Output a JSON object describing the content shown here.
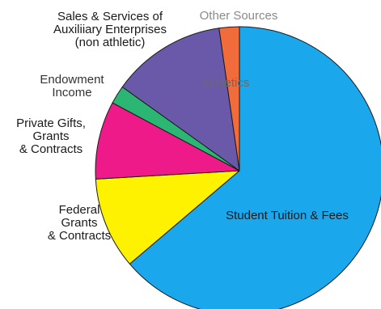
{
  "chart_data": {
    "type": "pie",
    "start_angle_deg": 0,
    "direction": "clockwise",
    "slices": [
      {
        "label": [
          "Student Tuition & Fees"
        ],
        "value": 62.0,
        "color": "#1aa7ec",
        "text_color": "#1a1a1a"
      },
      {
        "label": [
          "Federal",
          "Grants",
          "& Contracts"
        ],
        "value": 10.0,
        "color": "#fff200",
        "text_color": "#1a1a1a"
      },
      {
        "label": [
          "Private Gifts,",
          "Grants",
          "& Contracts"
        ],
        "value": 8.5,
        "color": "#ee1a8a",
        "text_color": "#1a1a1a"
      },
      {
        "label": [
          "Endowment",
          "Income"
        ],
        "value": 2.0,
        "color": "#2bb673",
        "text_color": "#333333"
      },
      {
        "label": [
          "Sales & Services of",
          "Auxiliiary Enterprises",
          "(non athletic)"
        ],
        "value": 12.5,
        "color": "#6a58a8",
        "text_color": "#1a1a1a"
      },
      {
        "label": [
          "Athletics"
        ],
        "value": 0,
        "color": "#6a58a8",
        "text_color": "#6a6a6a"
      },
      {
        "label": [
          "Other Sources"
        ],
        "value": 2.2,
        "color": "#f26b3a",
        "text_color": "#8a8a8a"
      }
    ]
  }
}
